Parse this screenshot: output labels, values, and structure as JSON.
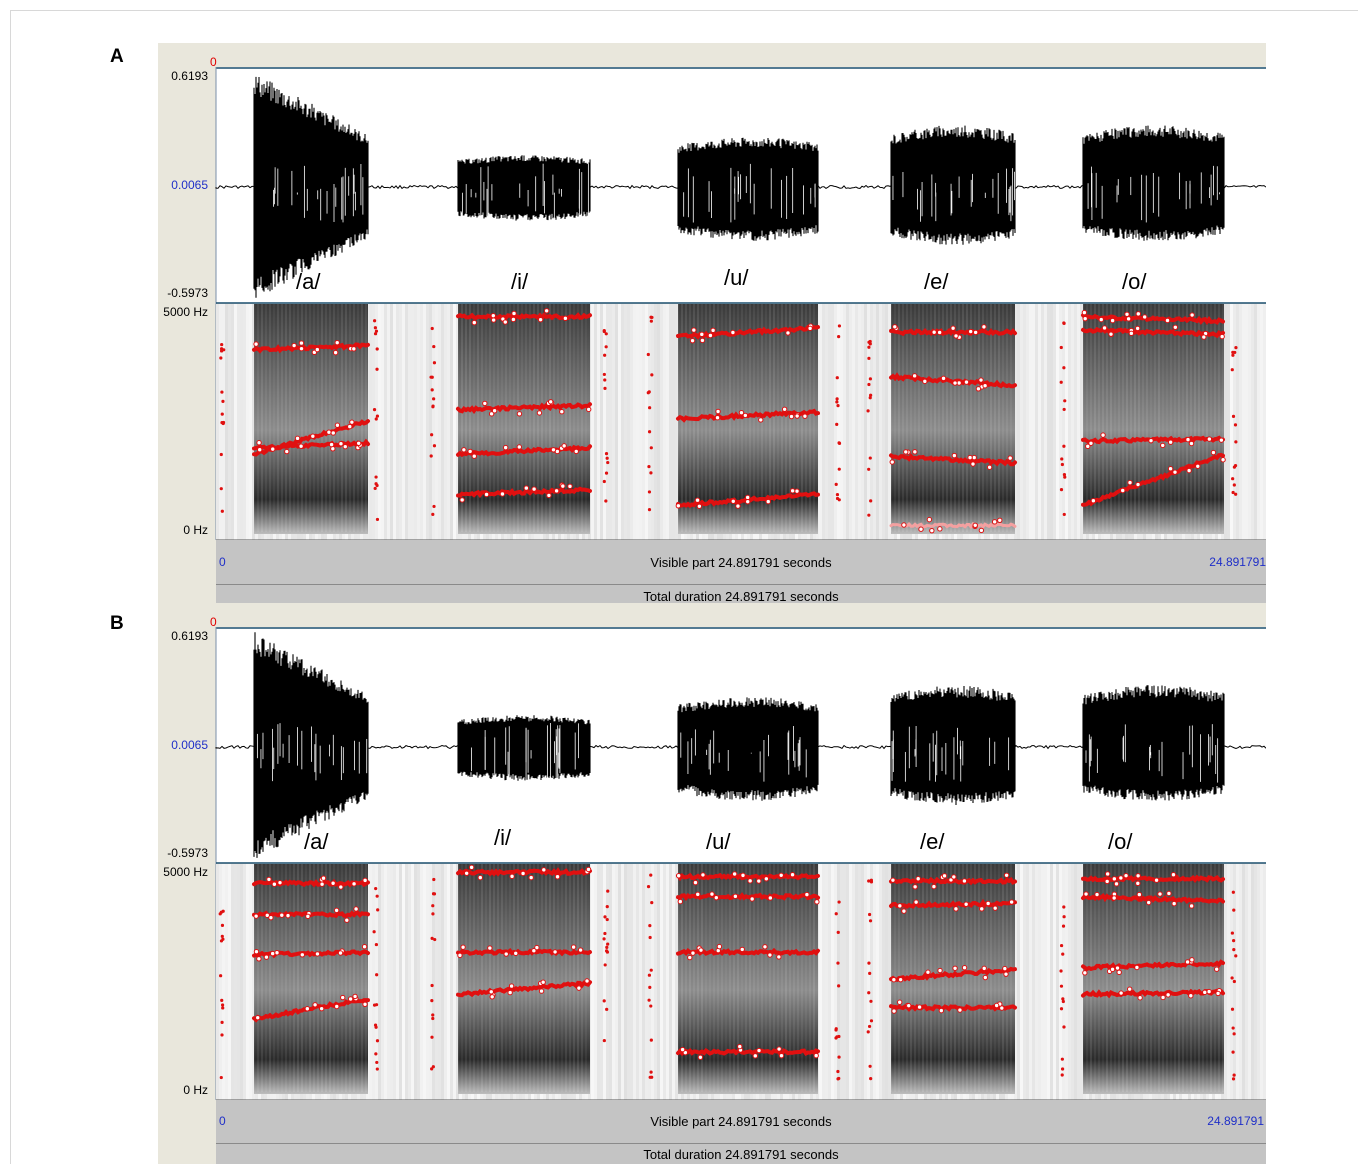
{
  "panels": [
    {
      "letter": "A",
      "cursor_time": "0",
      "amplitude": {
        "max": "0.6193",
        "mid": "0.0065",
        "min": "-0.5973"
      },
      "frequency": {
        "max": "5000 Hz",
        "min": "0 Hz"
      },
      "vowels": [
        "/a/",
        "/i/",
        "/u/",
        "/e/",
        "/o/"
      ],
      "time_start": "0",
      "time_end": "24.891791",
      "visible_part": "Visible part 24.891791 seconds",
      "total_duration": "Total duration 24.891791 seconds"
    },
    {
      "letter": "B",
      "cursor_time": "0",
      "amplitude": {
        "max": "0.6193",
        "mid": "0.0065",
        "min": "-0.5973"
      },
      "frequency": {
        "max": "5000 Hz",
        "min": "0 Hz"
      },
      "vowels": [
        "/a/",
        "/i/",
        "/u/",
        "/e/",
        "/o/"
      ],
      "time_start": "0",
      "time_end": "24.891791",
      "visible_part": "Visible part 24.891791 seconds",
      "total_duration": "Total duration 24.891791 seconds"
    }
  ],
  "colors": {
    "formant_track": "#e01010",
    "formant_light": "#f4a0a0",
    "waveform": "#000000",
    "panel_bg": "#e9e7dc",
    "bar_bg": "#c4c4c4",
    "axis_blue": "#1f2fc8"
  }
}
